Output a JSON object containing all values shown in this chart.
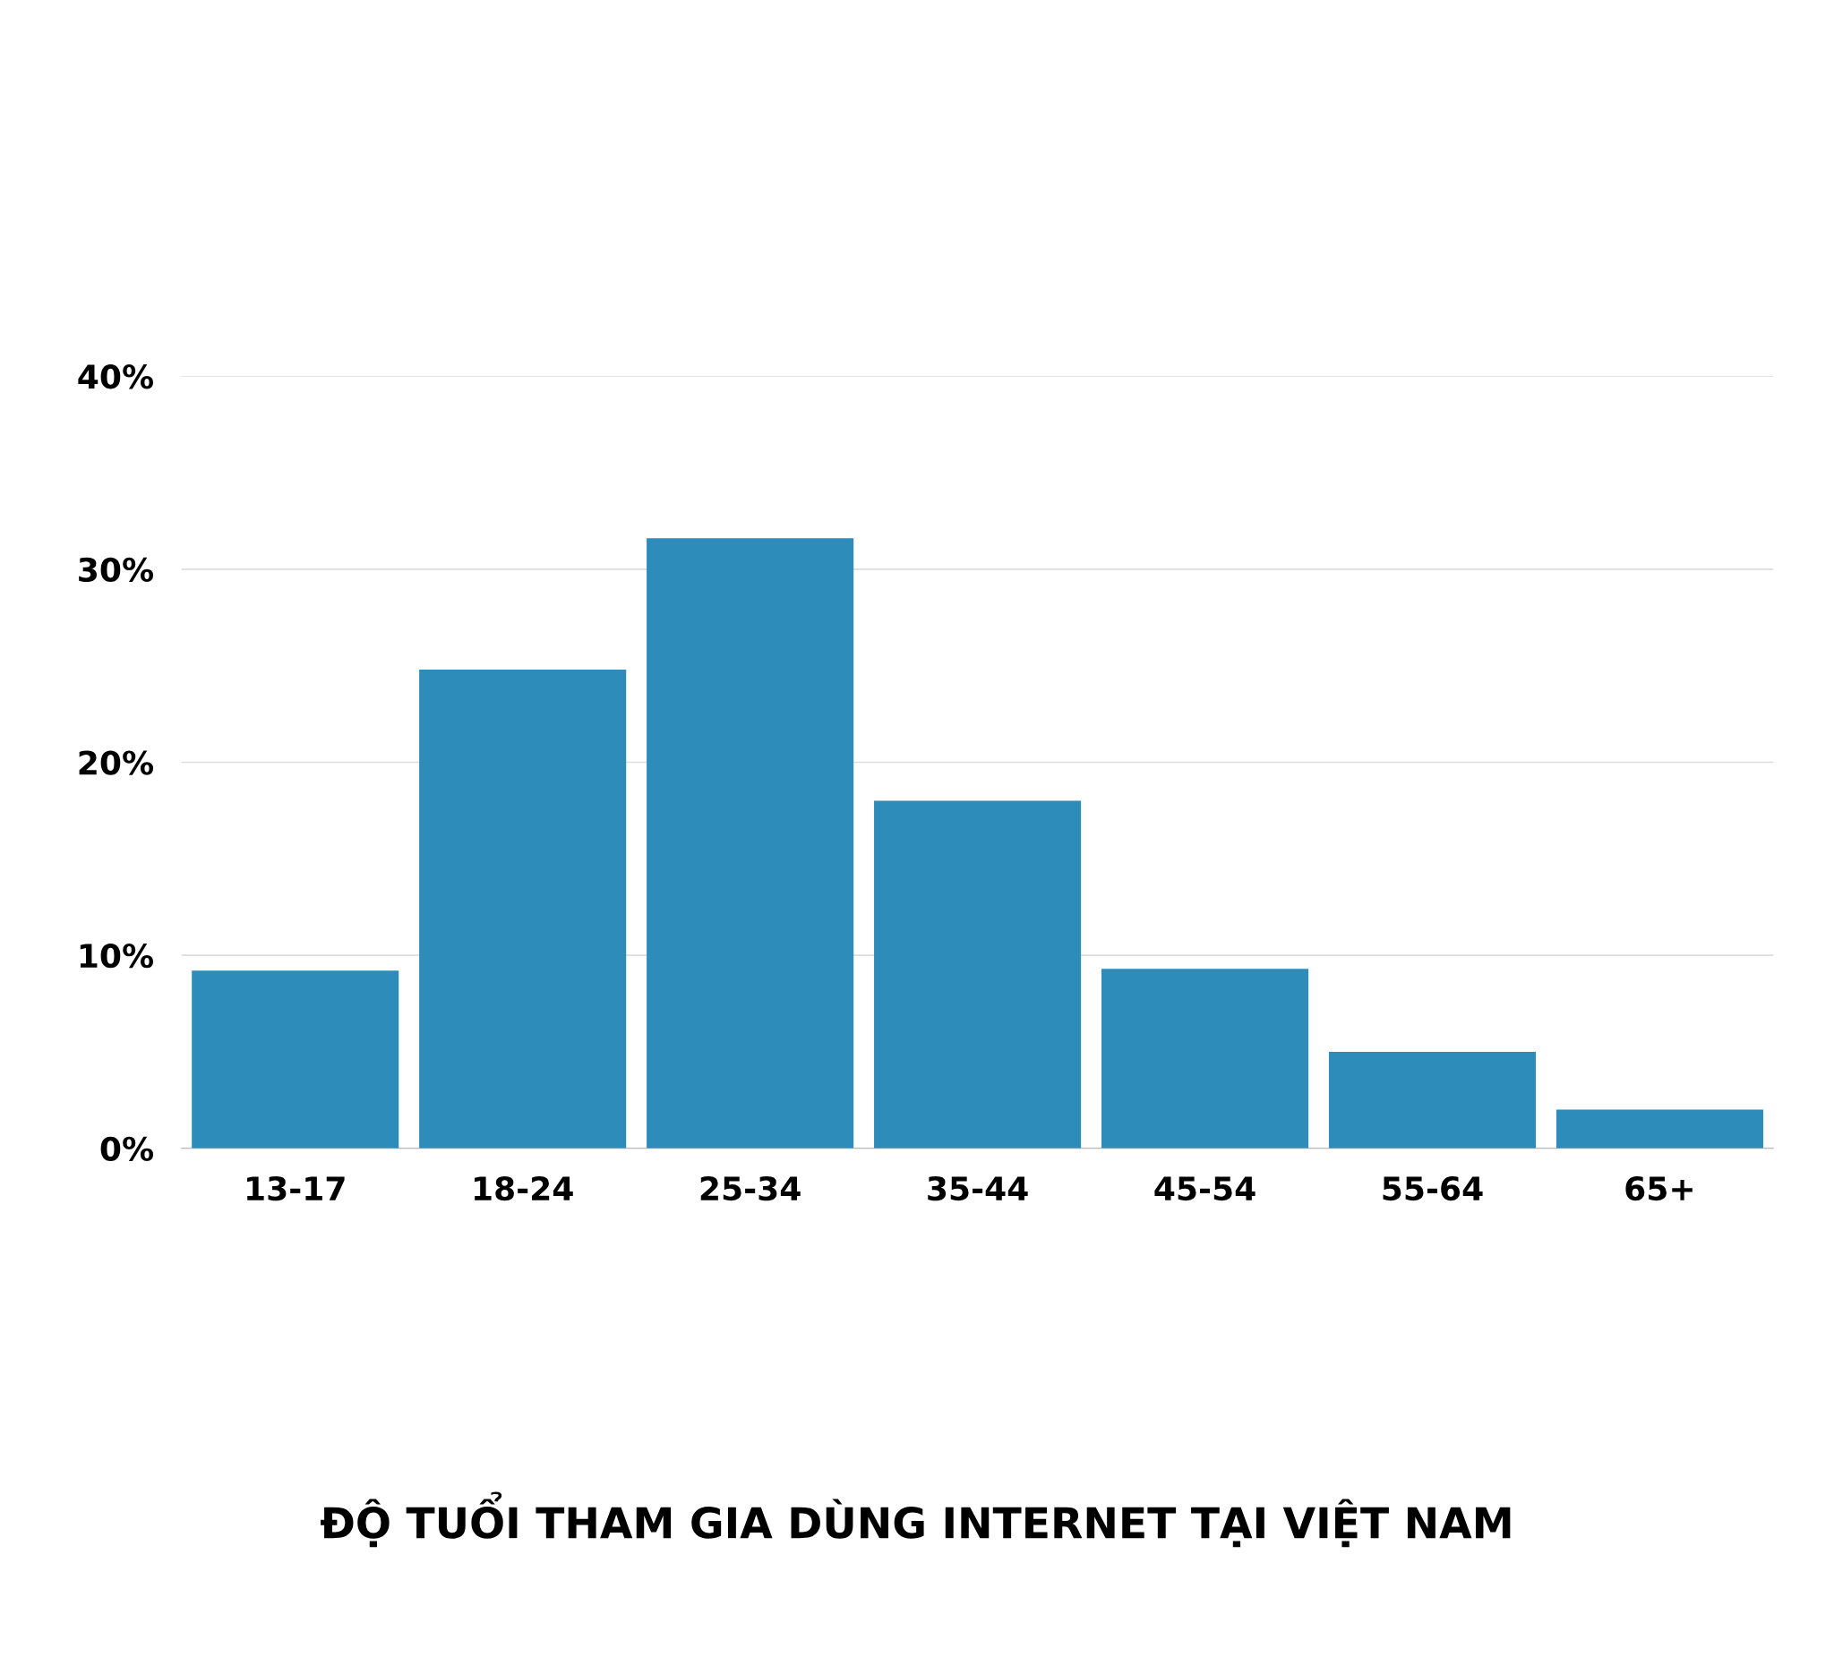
{
  "chart_data": {
    "type": "bar",
    "title": "ĐỘ TUỔI THAM GIA DÙNG INTERNET TẠI VIỆT NAM",
    "categories": [
      "13-17",
      "18-24",
      "25-34",
      "35-44",
      "45-54",
      "55-64",
      "65+"
    ],
    "values": [
      9.2,
      24.8,
      31.6,
      18.0,
      9.3,
      5.0,
      2.0
    ],
    "color": "#2e8cba",
    "ylim": [
      0,
      40
    ],
    "yticks": [
      {
        "value": 0,
        "label": "0%"
      },
      {
        "value": 10,
        "label": "10%"
      },
      {
        "value": 20,
        "label": "20%"
      },
      {
        "value": 30,
        "label": "30%"
      },
      {
        "value": 40,
        "label": "40%"
      }
    ],
    "grid": "y"
  }
}
